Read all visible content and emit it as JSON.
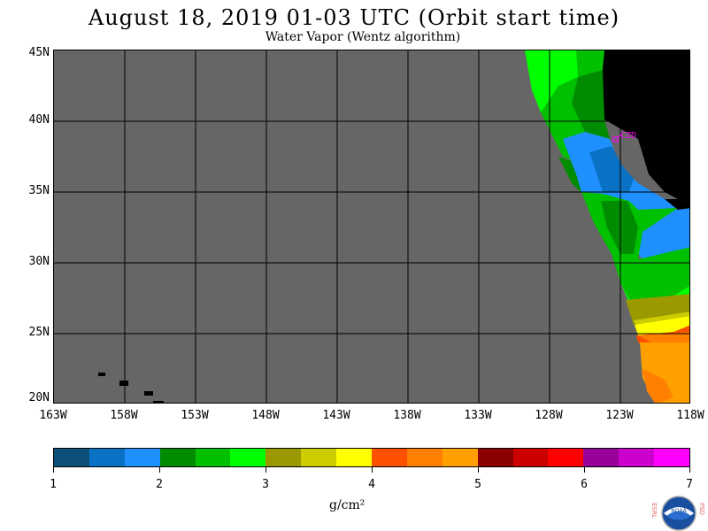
{
  "title": "August 18, 2019  01-03 UTC  (Orbit start time)",
  "subtitle": "Water Vapor (Wentz algorithm)",
  "station_label": "CZD",
  "lat_labels": [
    "45N",
    "40N",
    "35N",
    "30N",
    "25N",
    "20N"
  ],
  "lon_labels": [
    "163W",
    "158W",
    "153W",
    "148W",
    "143W",
    "138W",
    "133W",
    "128W",
    "123W",
    "118W"
  ],
  "colorbar": {
    "colors": [
      "#0c4f79",
      "#0a72c5",
      "#1e90ff",
      "#008c00",
      "#00c000",
      "#00ff00",
      "#9a9a00",
      "#cccc00",
      "#ffff00",
      "#ff5000",
      "#ff8000",
      "#ffa000",
      "#8b0000",
      "#cc0000",
      "#ff0000",
      "#990099",
      "#cc00cc",
      "#ff00ff"
    ],
    "tick_labels": [
      "1",
      "2",
      "3",
      "4",
      "5",
      "6",
      "7"
    ],
    "units": "g/cm²"
  },
  "colors": {
    "background_gray": "#666666",
    "land": "#000000",
    "station": "#ff00ff"
  },
  "logo_text": {
    "left": "ESRL",
    "right": "PSD",
    "center": "NOAA"
  }
}
